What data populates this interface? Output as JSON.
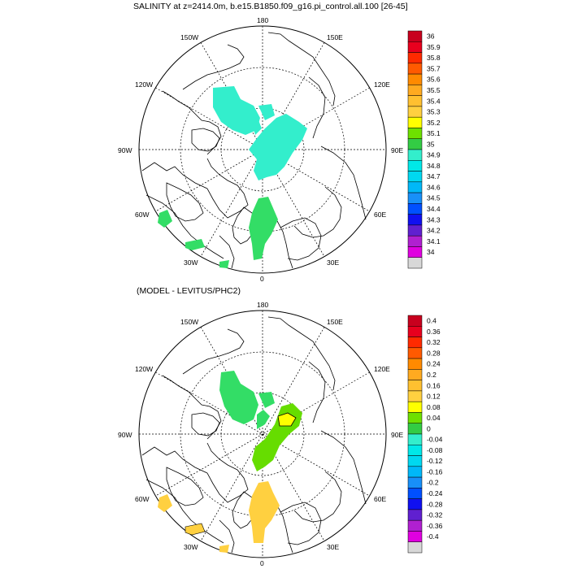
{
  "panel1": {
    "title": "SALINITY at z=2414.0m, b.e15.B1850.f09_g16.pi_control.all.100 [26-45]",
    "lon_labels": {
      "top": "180",
      "bottom": "0",
      "left": "90W",
      "right": "90E",
      "ul": "150W",
      "ur": "150E",
      "uml": "120W",
      "umr": "120E",
      "lml": "60W",
      "lmr": "60E",
      "ll": "30W",
      "lr": "30E"
    },
    "colorbar_labels": [
      "36",
      "35.9",
      "35.8",
      "35.7",
      "35.6",
      "35.5",
      "35.4",
      "35.3",
      "35.2",
      "35.1",
      "35",
      "34.9",
      "34.8",
      "34.7",
      "34.6",
      "34.5",
      "34.4",
      "34.3",
      "34.2",
      "34.1",
      "34"
    ],
    "colorbar_colors": [
      "#c8001e",
      "#e8001e",
      "#ff2a00",
      "#ff5a00",
      "#ff8a00",
      "#ffaa20",
      "#ffc030",
      "#ffd040",
      "#ffff00",
      "#6ee000",
      "#33cc44",
      "#33eecc",
      "#00e8e8",
      "#00d8f0",
      "#00b8f8",
      "#1890f8",
      "#0050ff",
      "#1010f0",
      "#6020d0",
      "#b020d0",
      "#e000e0",
      "#d8d8d8",
      "#707070"
    ]
  },
  "panel2": {
    "title": "(MODEL - LEVITUS/PHC2)",
    "lon_labels": {
      "top": "180",
      "bottom": "0",
      "left": "90W",
      "right": "90E",
      "ul": "150W",
      "ur": "150E",
      "uml": "120W",
      "umr": "120E",
      "lml": "60W",
      "lmr": "60E",
      "ll": "30W",
      "lr": "30E"
    },
    "colorbar_labels": [
      "0.4",
      "0.36",
      "0.32",
      "0.28",
      "0.24",
      "0.2",
      "0.16",
      "0.12",
      "0.08",
      "0.04",
      "0",
      "-0.04",
      "-0.08",
      "-0.12",
      "-0.16",
      "-0.2",
      "-0.24",
      "-0.28",
      "-0.32",
      "-0.36",
      "-0.4"
    ],
    "colorbar_colors": [
      "#c8001e",
      "#e8001e",
      "#ff2a00",
      "#ff5a00",
      "#ff8a00",
      "#ffaa20",
      "#ffc030",
      "#ffd040",
      "#ffff00",
      "#6ee000",
      "#33cc44",
      "#33eecc",
      "#00e8e8",
      "#00d8f0",
      "#00b8f8",
      "#1890f8",
      "#0050ff",
      "#1010f0",
      "#6020d0",
      "#b020d0",
      "#e000e0",
      "#d8d8d8",
      "#707070"
    ]
  },
  "fill_colors": {
    "cyan": "#33eecc",
    "green": "#33dd66",
    "lime": "#66dd00",
    "yellow": "#ffd040"
  }
}
